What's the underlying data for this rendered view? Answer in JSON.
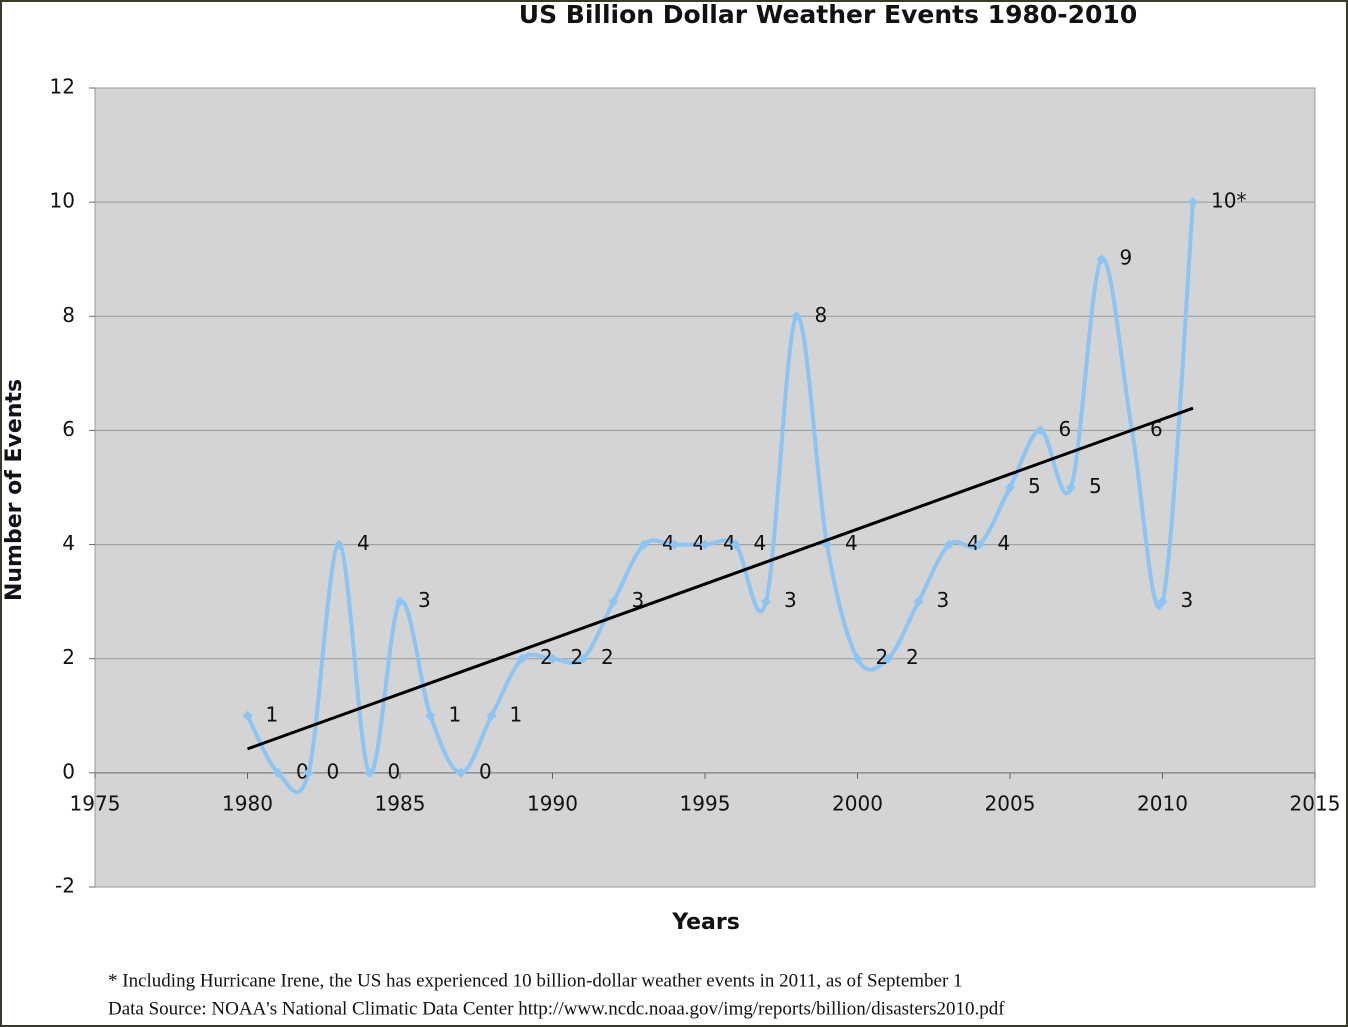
{
  "chart_data": {
    "type": "line",
    "title": "US Billion Dollar Weather Events 1980-2010",
    "xlabel": "Years",
    "ylabel": "Number of Events",
    "notes": [
      "* Including Hurricane Irene, the US has experienced 10 billion-dollar weather events in 2011, as of September 1",
      "Data Source: NOAA's National Climatic Data Center http://www.ncdc.noaa.gov/img/reports/billion/disasters2010.pdf"
    ],
    "x": [
      1980,
      1981,
      1982,
      1983,
      1984,
      1985,
      1986,
      1987,
      1988,
      1989,
      1990,
      1991,
      1992,
      1993,
      1994,
      1995,
      1996,
      1997,
      1998,
      1999,
      2000,
      2001,
      2002,
      2003,
      2004,
      2005,
      2006,
      2007,
      2008,
      2009,
      2010,
      2011
    ],
    "series": [
      {
        "color": "#8cc4f4",
        "values": [
          1,
          0,
          0,
          4,
          0,
          3,
          1,
          0,
          1,
          2,
          2,
          2,
          3,
          4,
          4,
          4,
          4,
          3,
          8,
          4,
          2,
          2,
          3,
          4,
          4,
          5,
          6,
          5,
          9,
          6,
          3,
          10
        ],
        "value_labels": [
          "1",
          "0",
          "0",
          "4",
          "0",
          "3",
          "1",
          "0",
          "1",
          "2",
          "2",
          "2",
          "3",
          "4",
          "4",
          "4",
          "4",
          "3",
          "8",
          "4",
          "2",
          "2",
          "3",
          "4",
          "4",
          "5",
          "6",
          "5",
          "9",
          "6",
          "3",
          "10*"
        ]
      }
    ],
    "trendline": {
      "color": "#000000",
      "x": [
        1980,
        2011
      ],
      "values": [
        0.42,
        6.39
      ]
    },
    "xlim": [
      1975,
      2015
    ],
    "xticks": [
      1975,
      1980,
      1985,
      1990,
      1995,
      2000,
      2005,
      2010,
      2015
    ],
    "ylim": [
      -2,
      12
    ],
    "yticks": [
      -2,
      0,
      2,
      4,
      6,
      8,
      10,
      12
    ],
    "grid": true
  }
}
